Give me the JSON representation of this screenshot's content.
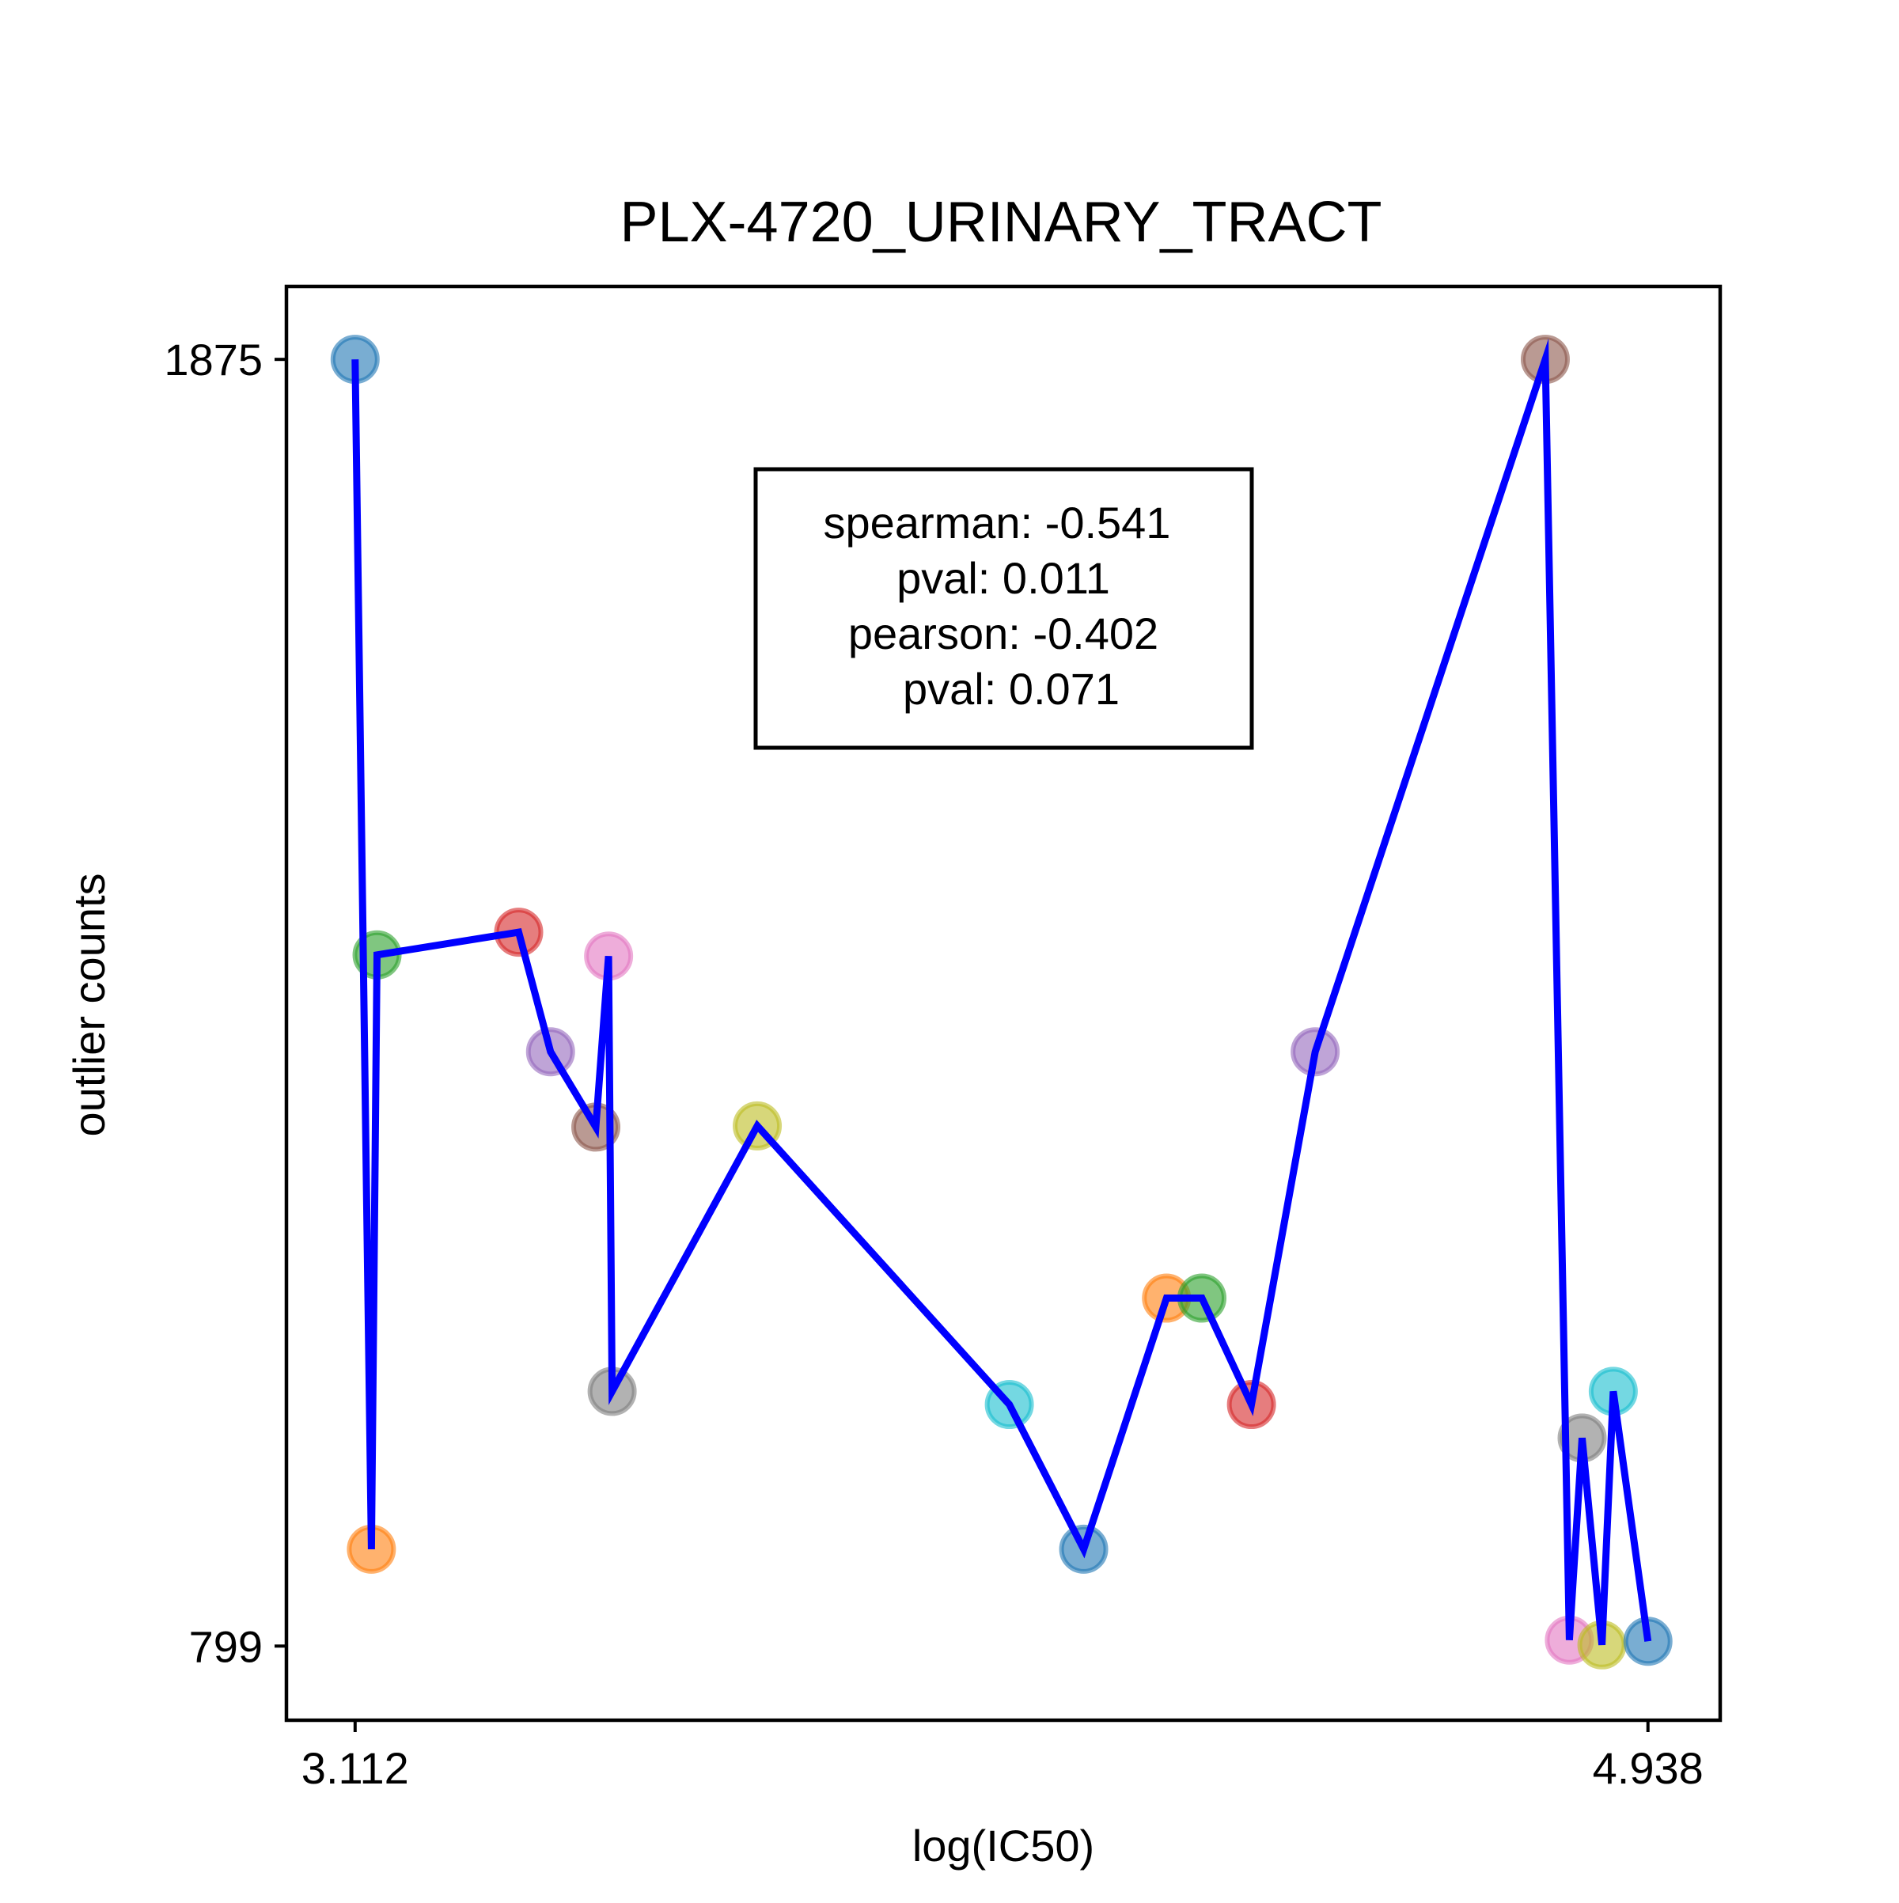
{
  "chart_data": {
    "type": "scatter",
    "title": "PLX-4720_URINARY_TRACT",
    "xlabel": "log(IC50)",
    "ylabel": "outlier counts",
    "x_ticks": [
      3.112,
      4.938
    ],
    "x_tick_labels": [
      "3.112",
      "4.938"
    ],
    "y_ticks": [
      799,
      1875
    ],
    "y_tick_labels": [
      "799",
      "1875"
    ],
    "xlim": [
      3.015,
      5.04
    ],
    "ylim": [
      737,
      1936
    ],
    "grid": false,
    "stats_box": [
      "spearman: -0.541",
      "pval: 0.011",
      "pearson: -0.402",
      "pval: 0.071"
    ],
    "line_color": "#0000ff",
    "point_colors": [
      "#1f77b4",
      "#ff7f0e",
      "#2ca02c",
      "#d62728",
      "#9467bd",
      "#8c564b",
      "#e377c2",
      "#7f7f7f",
      "#bcbd22",
      "#17becf"
    ],
    "points": [
      {
        "x": 3.112,
        "y": 1875
      },
      {
        "x": 3.135,
        "y": 880
      },
      {
        "x": 3.143,
        "y": 1377
      },
      {
        "x": 3.343,
        "y": 1396
      },
      {
        "x": 3.388,
        "y": 1296
      },
      {
        "x": 3.452,
        "y": 1233
      },
      {
        "x": 3.47,
        "y": 1376
      },
      {
        "x": 3.475,
        "y": 1012
      },
      {
        "x": 3.68,
        "y": 1234
      },
      {
        "x": 4.036,
        "y": 1001
      },
      {
        "x": 4.141,
        "y": 880
      },
      {
        "x": 4.258,
        "y": 1090
      },
      {
        "x": 4.308,
        "y": 1090
      },
      {
        "x": 4.378,
        "y": 1001
      },
      {
        "x": 4.468,
        "y": 1296
      },
      {
        "x": 4.793,
        "y": 1875
      },
      {
        "x": 4.827,
        "y": 804
      },
      {
        "x": 4.845,
        "y": 973
      },
      {
        "x": 4.873,
        "y": 800
      },
      {
        "x": 4.889,
        "y": 1012
      },
      {
        "x": 4.938,
        "y": 803
      }
    ]
  }
}
